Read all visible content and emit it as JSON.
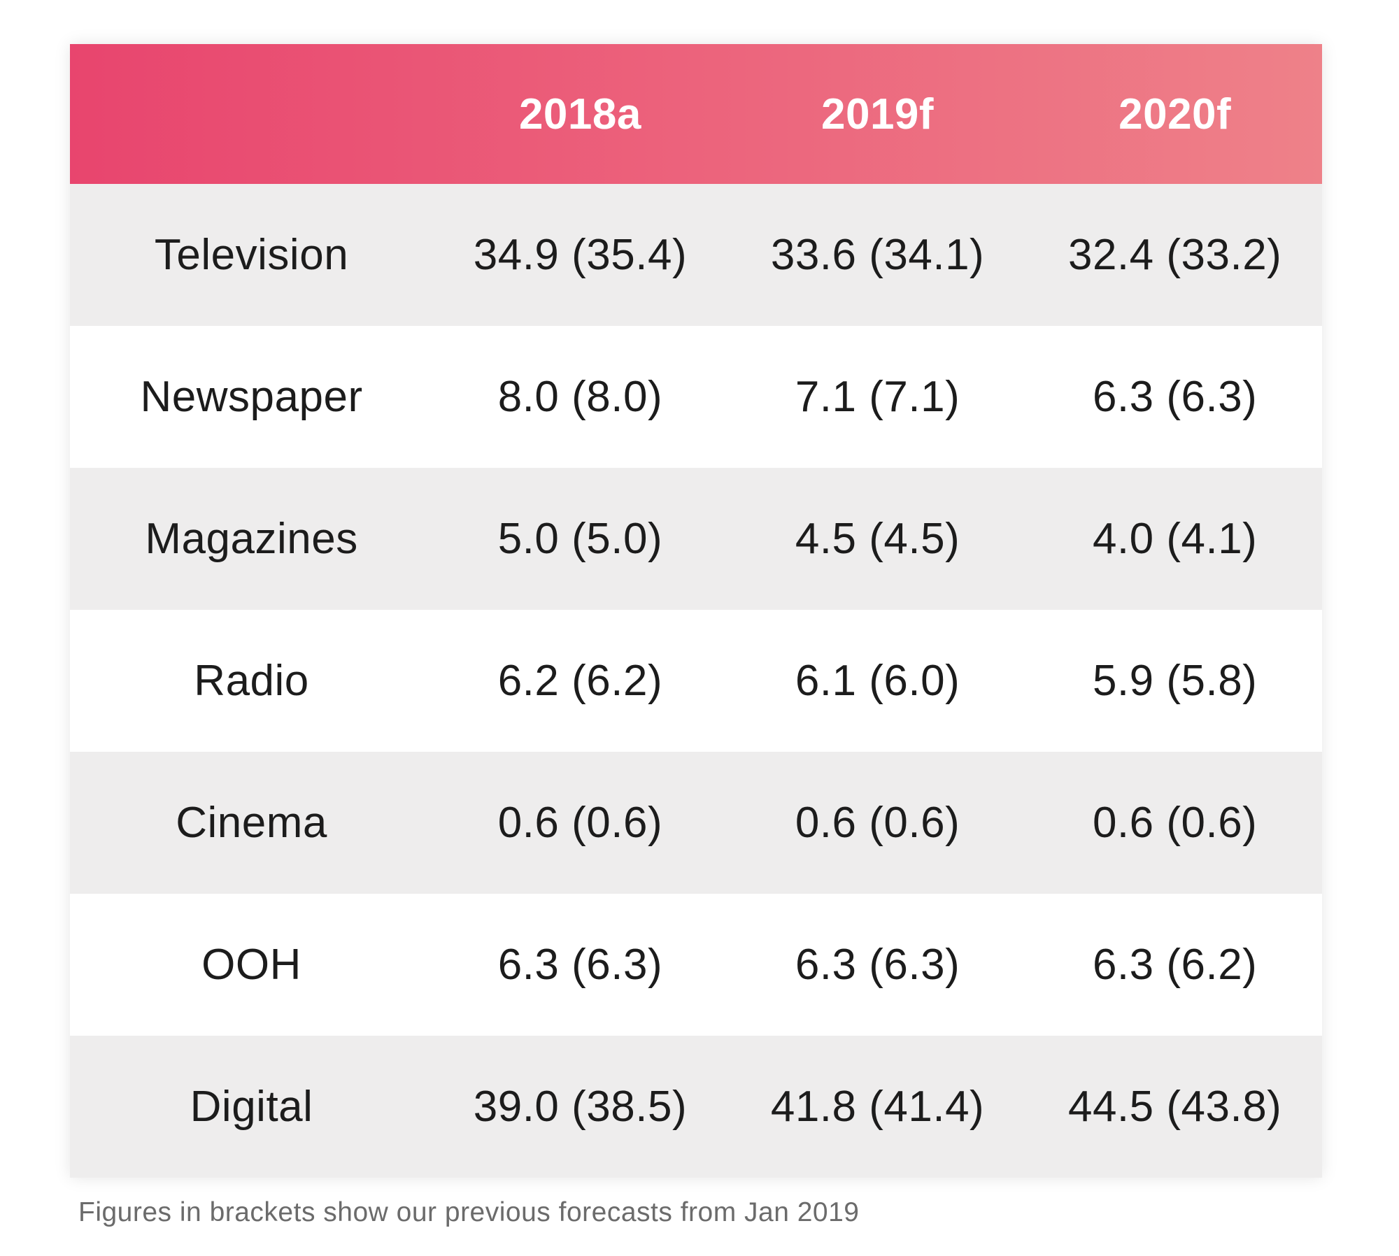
{
  "table": {
    "header": {
      "col1": "2018a",
      "col2": "2019f",
      "col3": "2020f"
    },
    "rows": [
      {
        "label": "Television",
        "values": [
          "34.9 (35.4)",
          "33.6 (34.1)",
          "32.4 (33.2)"
        ]
      },
      {
        "label": "Newspaper",
        "values": [
          "8.0 (8.0)",
          "7.1 (7.1)",
          "6.3 (6.3)"
        ]
      },
      {
        "label": "Magazines",
        "values": [
          "5.0 (5.0)",
          "4.5 (4.5)",
          "4.0 (4.1)"
        ]
      },
      {
        "label": "Radio",
        "values": [
          "6.2 (6.2)",
          "6.1 (6.0)",
          "5.9 (5.8)"
        ]
      },
      {
        "label": "Cinema",
        "values": [
          "0.6 (0.6)",
          "0.6 (0.6)",
          "0.6 (0.6)"
        ]
      },
      {
        "label": "OOH",
        "values": [
          "6.3 (6.3)",
          "6.3 (6.3)",
          "6.3 (6.2)"
        ]
      },
      {
        "label": "Digital",
        "values": [
          "39.0 (38.5)",
          "41.8 (41.4)",
          "44.5 (43.8)"
        ]
      }
    ],
    "footnote": "Figures in brackets show our previous forecasts from Jan 2019"
  },
  "colors": {
    "header_gradient_start": "#e8456e",
    "header_gradient_end": "#ee8189",
    "row_alt_background": "#eeeded",
    "row_background": "#ffffff",
    "header_text": "#ffffff",
    "body_text": "#1c1c1c",
    "footnote_text": "#6b6b6b"
  },
  "chart_data": {
    "type": "table",
    "title": "",
    "columns": [
      "2018a",
      "2019f",
      "2020f"
    ],
    "categories": [
      "Television",
      "Newspaper",
      "Magazines",
      "Radio",
      "Cinema",
      "OOH",
      "Digital"
    ],
    "series": [
      {
        "name": "2018a current",
        "values": [
          34.9,
          8.0,
          5.0,
          6.2,
          0.6,
          6.3,
          39.0
        ]
      },
      {
        "name": "2018a previous forecast",
        "values": [
          35.4,
          8.0,
          5.0,
          6.2,
          0.6,
          6.3,
          38.5
        ]
      },
      {
        "name": "2019f current",
        "values": [
          33.6,
          7.1,
          4.5,
          6.1,
          0.6,
          6.3,
          41.8
        ]
      },
      {
        "name": "2019f previous forecast",
        "values": [
          34.1,
          7.1,
          4.5,
          6.0,
          0.6,
          6.3,
          41.4
        ]
      },
      {
        "name": "2020f current",
        "values": [
          32.4,
          6.3,
          4.0,
          5.9,
          0.6,
          6.3,
          44.5
        ]
      },
      {
        "name": "2020f previous forecast",
        "values": [
          33.2,
          6.3,
          4.1,
          5.8,
          0.6,
          6.2,
          43.8
        ]
      }
    ],
    "annotations": [
      "Figures in brackets show our previous forecasts from Jan 2019"
    ],
    "layout": {
      "alternating_row_shading": true,
      "header_style": "pink gradient band"
    }
  }
}
